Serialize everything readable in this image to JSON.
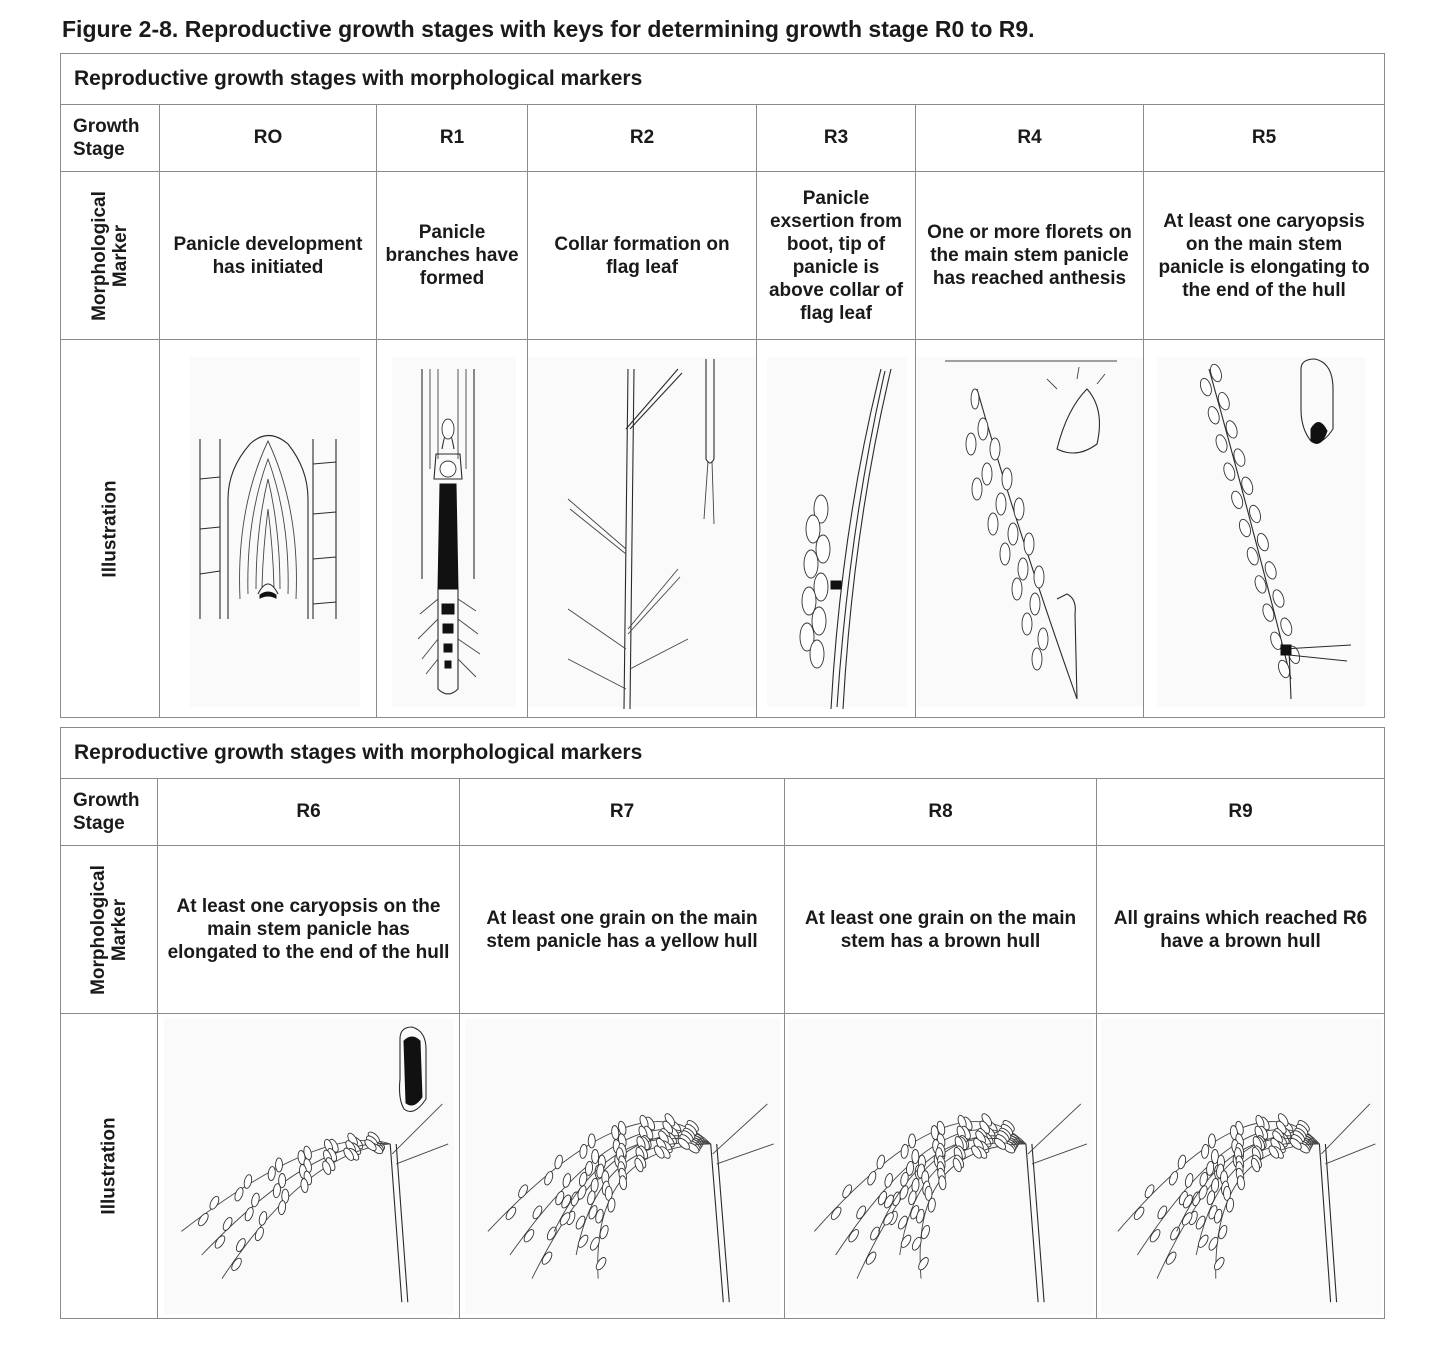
{
  "figure": {
    "label": "Figure 2-8.",
    "caption": "Reproductive growth stages with keys for determining growth stage R0 to R9."
  },
  "top_table": {
    "heading": "Reproductive growth stages with morphological markers",
    "row_labels": {
      "stage": "Growth Stage",
      "marker": "Morphological Marker",
      "illustration": "Illustration"
    },
    "stages": [
      {
        "stage": "RO",
        "marker": "Panicle development has initiated",
        "illustration_icon": "panicle-initiation-illustration"
      },
      {
        "stage": "R1",
        "marker": "Panicle branches have formed",
        "illustration_icon": "panicle-branches-illustration"
      },
      {
        "stage": "R2",
        "marker": "Collar formation on flag leaf",
        "illustration_icon": "flag-leaf-collar-illustration"
      },
      {
        "stage": "R3",
        "marker": "Panicle exsertion from boot, tip of panicle is above collar of flag leaf",
        "illustration_icon": "panicle-exsertion-illustration"
      },
      {
        "stage": "R4",
        "marker": "One or more florets on the main stem panicle has reached anthesis",
        "illustration_icon": "anthesis-illustration"
      },
      {
        "stage": "R5",
        "marker": "At least one caryopsis on the main stem panicle is elongating to the end of the hull",
        "illustration_icon": "caryopsis-elongating-illustration"
      }
    ]
  },
  "bottom_table": {
    "heading": "Reproductive growth stages with morphological markers",
    "row_labels": {
      "stage": "Growth Stage",
      "marker": "Morphological Marker",
      "illustration": "Illustration"
    },
    "stages": [
      {
        "stage": "R6",
        "marker": "At least one caryopsis on the main stem panicle has elongated to the end of the hull",
        "illustration_icon": "caryopsis-elongated-illustration"
      },
      {
        "stage": "R7",
        "marker": "At least one grain on the main stem panicle has a yellow hull",
        "illustration_icon": "yellow-hull-panicle-illustration"
      },
      {
        "stage": "R8",
        "marker": "At least one grain on the main stem has a brown hull",
        "illustration_icon": "brown-hull-panicle-illustration"
      },
      {
        "stage": "R9",
        "marker": "All grains which reached R6 have a brown hull",
        "illustration_icon": "all-brown-hull-panicle-illustration"
      }
    ]
  }
}
